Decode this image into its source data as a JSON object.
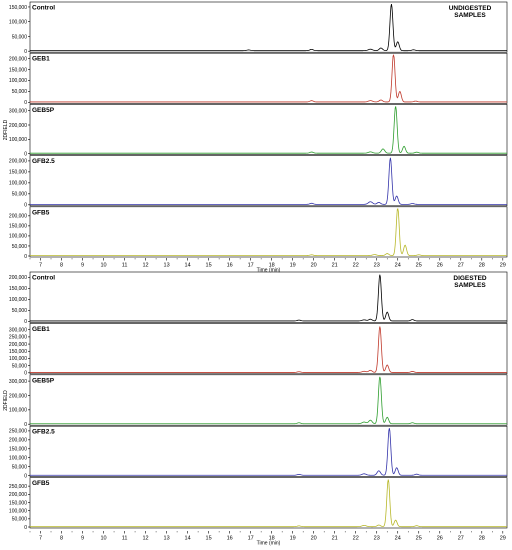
{
  "chart_data": [
    {
      "type": "line",
      "title": "UNDIGESTED SAMPLES",
      "xlabel": "Time (min)",
      "ylabel": "2DFIELD",
      "xlim": [
        6.5,
        29.2
      ],
      "xticks": [
        7,
        8,
        9,
        10,
        11,
        12,
        13,
        14,
        15,
        16,
        17,
        18,
        19,
        20,
        21,
        22,
        23,
        24,
        25,
        26,
        27,
        28,
        29
      ],
      "grid": false,
      "panels": [
        {
          "name": "Control",
          "color": "#000000",
          "ylim": [
            0,
            160000
          ],
          "yticks": [
            0,
            50000,
            100000,
            150000
          ],
          "ytick_labels": [
            "0",
            "50,000",
            "100,000",
            "150,000"
          ],
          "baseline": 1800,
          "peaks": [
            [
              16.9,
              2500,
              0.08
            ],
            [
              19.9,
              4500,
              0.08
            ],
            [
              22.7,
              5000,
              0.1
            ],
            [
              23.2,
              9000,
              0.08
            ],
            [
              23.7,
              158000,
              0.07
            ],
            [
              24.0,
              30000,
              0.07
            ],
            [
              24.75,
              3000,
              0.08
            ]
          ]
        },
        {
          "name": "GEB1",
          "color": "#c0392b",
          "ylim": [
            0,
            215000
          ],
          "yticks": [
            0,
            50000,
            100000,
            150000,
            200000
          ],
          "ytick_labels": [
            "0",
            "50,000",
            "100,000",
            "150,000",
            "200,000"
          ],
          "baseline": 2000,
          "peaks": [
            [
              19.9,
              6000,
              0.08
            ],
            [
              22.7,
              6000,
              0.1
            ],
            [
              23.2,
              9000,
              0.08
            ],
            [
              23.8,
              220000,
              0.07
            ],
            [
              24.1,
              48000,
              0.07
            ],
            [
              24.85,
              4000,
              0.08
            ]
          ]
        },
        {
          "name": "GEB5P",
          "color": "#2e9e2e",
          "ylim": [
            0,
            330000
          ],
          "yticks": [
            0,
            100000,
            200000,
            300000
          ],
          "ytick_labels": [
            "0",
            "100,000",
            "200,000",
            "300,000"
          ],
          "baseline": 3000,
          "peaks": [
            [
              19.9,
              8000,
              0.08
            ],
            [
              22.7,
              9000,
              0.1
            ],
            [
              23.3,
              30000,
              0.08
            ],
            [
              23.9,
              330000,
              0.07
            ],
            [
              24.3,
              48000,
              0.07
            ],
            [
              24.9,
              7000,
              0.08
            ]
          ]
        },
        {
          "name": "GFB2.5",
          "color": "#3333aa",
          "ylim": [
            0,
            215000
          ],
          "yticks": [
            0,
            50000,
            100000,
            150000,
            200000
          ],
          "ytick_labels": [
            "0",
            "50,000",
            "100,000",
            "150,000",
            "200,000"
          ],
          "baseline": 2000,
          "peaks": [
            [
              19.9,
              5000,
              0.08
            ],
            [
              22.7,
              12000,
              0.1
            ],
            [
              23.1,
              9000,
              0.08
            ],
            [
              23.65,
              212000,
              0.07
            ],
            [
              23.95,
              38000,
              0.07
            ],
            [
              24.7,
              4000,
              0.08
            ]
          ]
        },
        {
          "name": "GFB5",
          "color": "#b8b82a",
          "ylim": [
            0,
            235000
          ],
          "yticks": [
            0,
            50000,
            100000,
            150000,
            200000
          ],
          "ytick_labels": [
            "0",
            "50,000",
            "100,000",
            "150,000",
            "200,000"
          ],
          "baseline": 2000,
          "peaks": [
            [
              19.9,
              4000,
              0.08
            ],
            [
              22.9,
              5000,
              0.1
            ],
            [
              23.5,
              10000,
              0.08
            ],
            [
              24.0,
              240000,
              0.07
            ],
            [
              24.35,
              52000,
              0.07
            ],
            [
              25.0,
              4000,
              0.08
            ]
          ]
        }
      ]
    },
    {
      "type": "line",
      "title": "DIGESTED SAMPLES",
      "xlabel": "Time (min)",
      "ylabel": "2DFIELD",
      "xlim": [
        6.5,
        29.2
      ],
      "xticks": [
        7,
        8,
        9,
        10,
        11,
        12,
        13,
        14,
        15,
        16,
        17,
        18,
        19,
        20,
        21,
        22,
        23,
        24,
        25,
        26,
        27,
        28,
        29
      ],
      "grid": false,
      "panels": [
        {
          "name": "Control",
          "color": "#000000",
          "ylim": [
            0,
            215000
          ],
          "yticks": [
            0,
            50000,
            100000,
            150000,
            200000
          ],
          "ytick_labels": [
            "0",
            "50,000",
            "100,000",
            "150,000",
            "200,000"
          ],
          "baseline": 2000,
          "peaks": [
            [
              19.3,
              4000,
              0.08
            ],
            [
              22.4,
              5000,
              0.1
            ],
            [
              22.7,
              8000,
              0.08
            ],
            [
              23.15,
              210000,
              0.07
            ],
            [
              23.5,
              40000,
              0.07
            ],
            [
              24.7,
              6000,
              0.08
            ]
          ]
        },
        {
          "name": "GEB1",
          "color": "#c0392b",
          "ylim": [
            0,
            330000
          ],
          "yticks": [
            0,
            50000,
            100000,
            150000,
            200000,
            250000,
            300000
          ],
          "ytick_labels": [
            "0",
            "50,000",
            "100,000",
            "150,000",
            "200,000",
            "250,000",
            "300,000"
          ],
          "baseline": 2500,
          "peaks": [
            [
              19.3,
              5000,
              0.08
            ],
            [
              22.4,
              8000,
              0.1
            ],
            [
              22.7,
              15000,
              0.08
            ],
            [
              23.15,
              320000,
              0.07
            ],
            [
              23.5,
              52000,
              0.07
            ],
            [
              24.7,
              7000,
              0.08
            ]
          ]
        },
        {
          "name": "GEB5P",
          "color": "#2e9e2e",
          "ylim": [
            0,
            330000
          ],
          "yticks": [
            0,
            100000,
            200000,
            300000
          ],
          "ytick_labels": [
            "0",
            "100,000",
            "200,000",
            "300,000"
          ],
          "baseline": 3000,
          "peaks": [
            [
              19.3,
              7000,
              0.08
            ],
            [
              22.4,
              12000,
              0.1
            ],
            [
              22.7,
              25000,
              0.08
            ],
            [
              23.15,
              330000,
              0.07
            ],
            [
              23.5,
              45000,
              0.07
            ],
            [
              24.7,
              7000,
              0.08
            ]
          ]
        },
        {
          "name": "GFB2.5",
          "color": "#3333aa",
          "ylim": [
            0,
            265000
          ],
          "yticks": [
            0,
            50000,
            100000,
            150000,
            200000,
            250000
          ],
          "ytick_labels": [
            "0",
            "50,000",
            "100,000",
            "150,000",
            "200,000",
            "250,000"
          ],
          "baseline": 2000,
          "peaks": [
            [
              19.3,
              5000,
              0.08
            ],
            [
              22.4,
              8000,
              0.1
            ],
            [
              23.1,
              25000,
              0.08
            ],
            [
              23.6,
              265000,
              0.07
            ],
            [
              23.95,
              42000,
              0.07
            ],
            [
              24.9,
              6000,
              0.08
            ]
          ]
        },
        {
          "name": "GFB5",
          "color": "#b8b82a",
          "ylim": [
            0,
            290000
          ],
          "yticks": [
            0,
            50000,
            100000,
            150000,
            200000,
            250000
          ],
          "ytick_labels": [
            "0",
            "50,000",
            "100,000",
            "150,000",
            "200,000",
            "250,000"
          ],
          "baseline": 2000,
          "peaks": [
            [
              19.3,
              5000,
              0.08
            ],
            [
              22.4,
              8000,
              0.1
            ],
            [
              23.1,
              10000,
              0.08
            ],
            [
              23.55,
              290000,
              0.07
            ],
            [
              23.9,
              40000,
              0.07
            ],
            [
              24.9,
              6000,
              0.08
            ]
          ]
        }
      ]
    }
  ]
}
